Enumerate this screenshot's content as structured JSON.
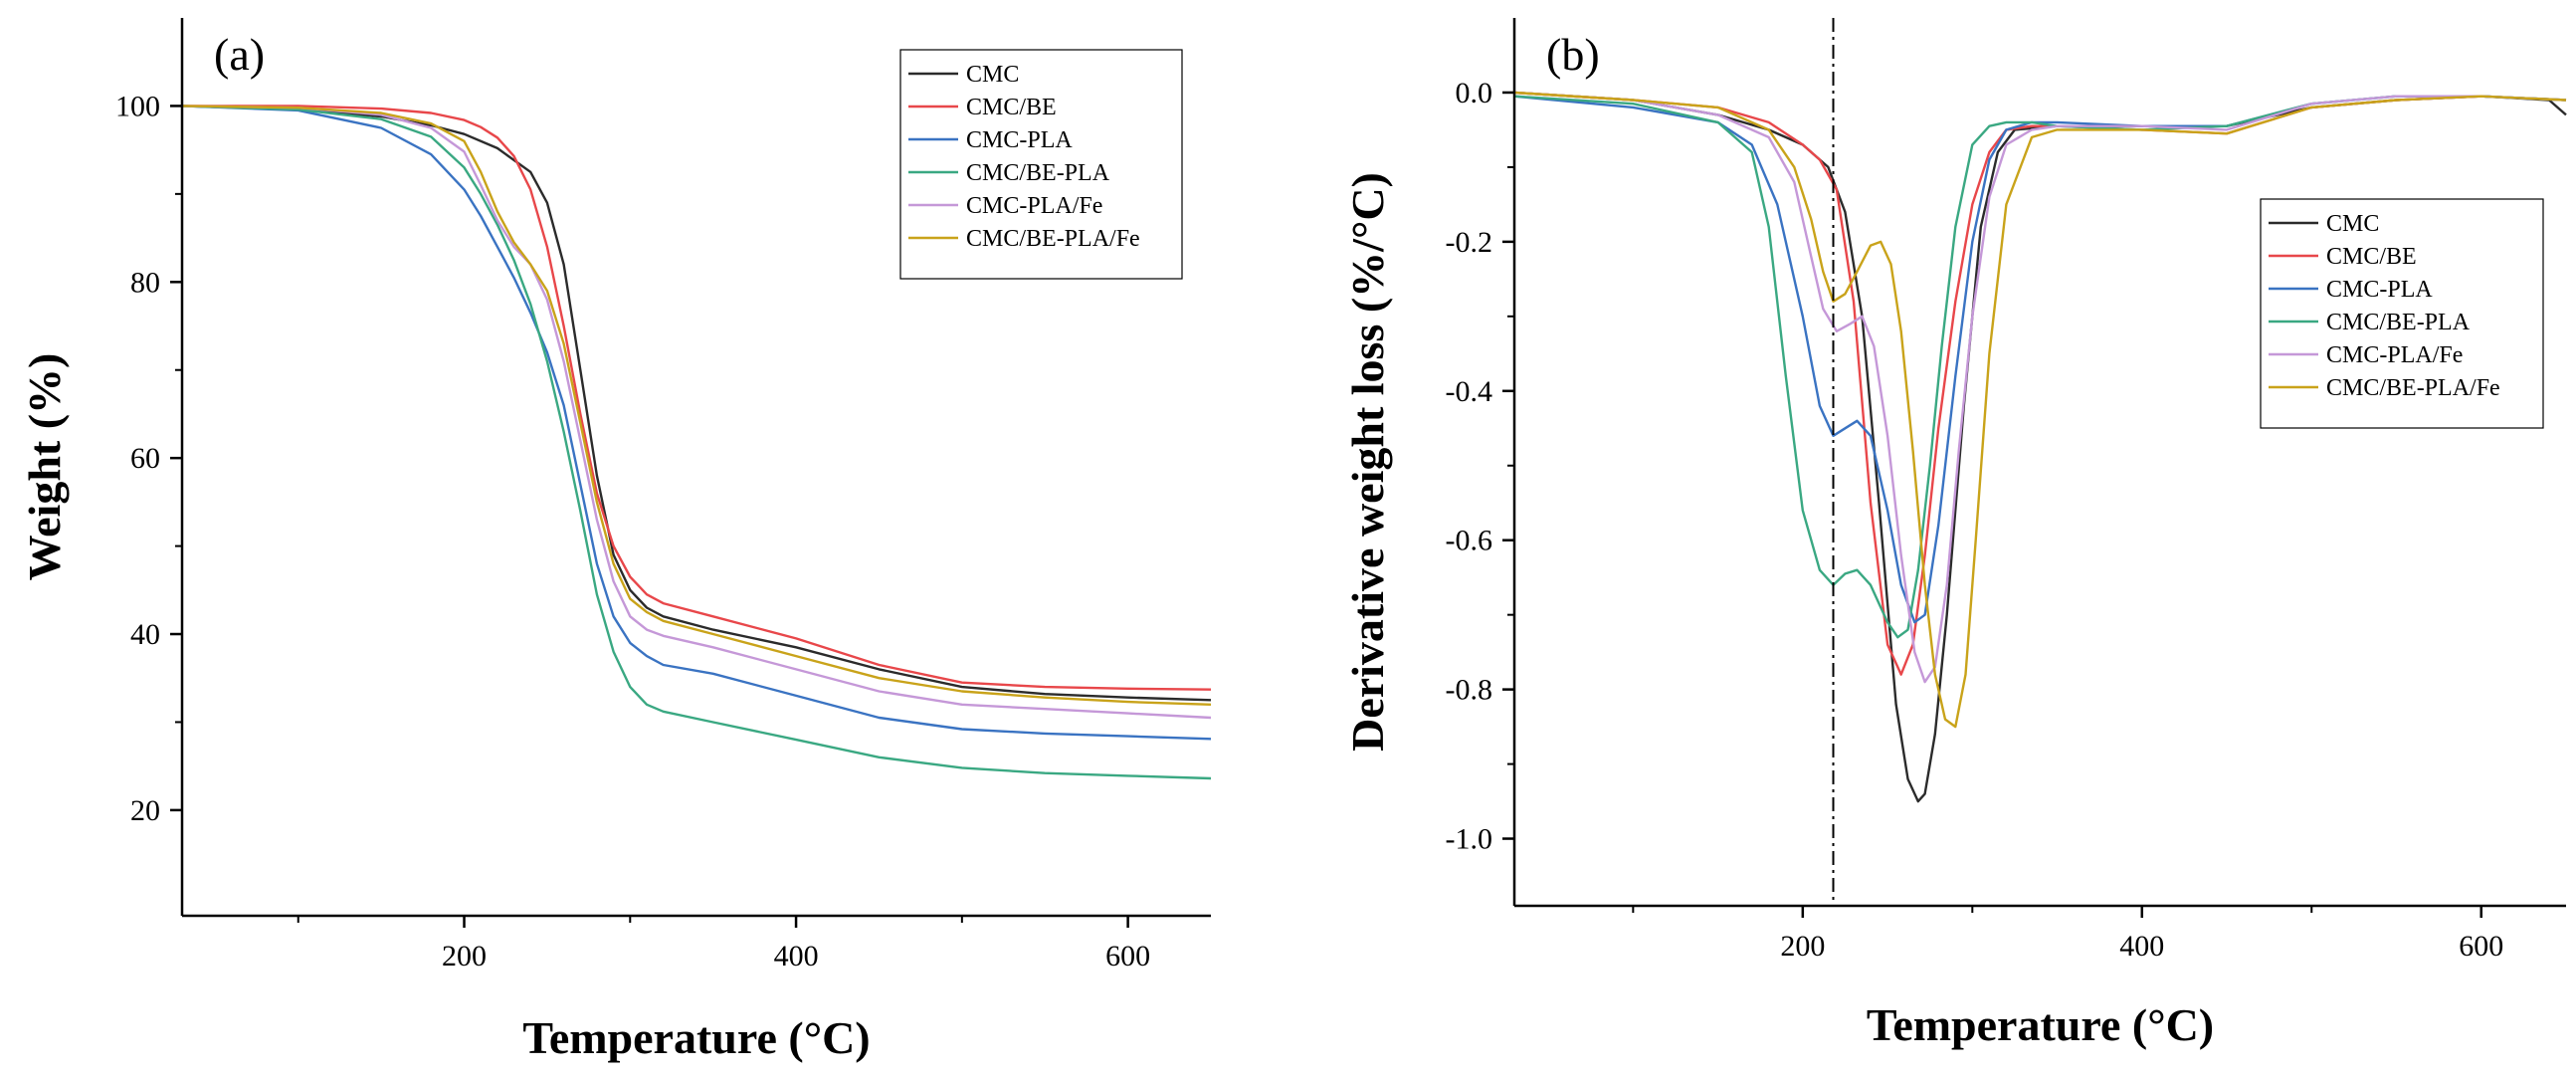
{
  "chart_data": [
    {
      "type": "line",
      "panel_label": "(a)",
      "xlabel": "Temperature (°C)",
      "ylabel": "Weight (%)",
      "xlim": [
        30,
        650
      ],
      "ylim": [
        8,
        110
      ],
      "x_ticks": [
        200,
        400,
        600
      ],
      "x_minor_ticks": [
        100,
        300,
        500
      ],
      "y_ticks": [
        20,
        40,
        60,
        80,
        100
      ],
      "grid": false,
      "legend_position": "top-right",
      "series": [
        {
          "name": "CMC",
          "color": "#2b2b2b",
          "x": [
            30,
            100,
            150,
            180,
            200,
            220,
            240,
            250,
            260,
            270,
            280,
            290,
            300,
            310,
            320,
            350,
            400,
            450,
            500,
            550,
            600,
            650
          ],
          "y": [
            100,
            99.6,
            98.8,
            97.8,
            96.8,
            95.2,
            92.5,
            89,
            82,
            70,
            58,
            49,
            45,
            43,
            42,
            40.5,
            38.5,
            36,
            34,
            33.2,
            32.8,
            32.5
          ]
        },
        {
          "name": "CMC/BE",
          "color": "#e8474a",
          "x": [
            30,
            100,
            150,
            180,
            200,
            210,
            220,
            230,
            240,
            250,
            260,
            270,
            280,
            290,
            300,
            310,
            320,
            350,
            400,
            450,
            500,
            550,
            600,
            650
          ],
          "y": [
            100,
            100,
            99.7,
            99.2,
            98.4,
            97.6,
            96.4,
            94.3,
            90.5,
            84,
            75,
            65,
            56,
            50,
            46.5,
            44.5,
            43.5,
            42,
            39.5,
            36.5,
            34.5,
            34,
            33.8,
            33.7
          ]
        },
        {
          "name": "CMC-PLA",
          "color": "#3a73c2",
          "x": [
            30,
            100,
            150,
            180,
            200,
            210,
            220,
            230,
            240,
            250,
            260,
            270,
            280,
            290,
            300,
            310,
            320,
            350,
            400,
            450,
            500,
            550,
            600,
            650
          ],
          "y": [
            100,
            99.5,
            97.5,
            94.5,
            90.5,
            87.5,
            84,
            80.5,
            76.5,
            72,
            66,
            57,
            48,
            42,
            39,
            37.5,
            36.5,
            35.5,
            33,
            30.5,
            29.2,
            28.7,
            28.4,
            28.1
          ]
        },
        {
          "name": "CMC/BE-PLA",
          "color": "#3aa882",
          "x": [
            30,
            100,
            150,
            180,
            200,
            210,
            220,
            230,
            240,
            250,
            260,
            270,
            280,
            290,
            300,
            310,
            320,
            350,
            400,
            450,
            500,
            550,
            600,
            650
          ],
          "y": [
            100,
            99.6,
            98.5,
            96.5,
            93,
            90,
            86.5,
            82.5,
            77.5,
            71,
            63,
            54,
            44.5,
            38,
            34,
            32,
            31.2,
            30,
            28,
            26,
            24.8,
            24.2,
            23.9,
            23.6
          ]
        },
        {
          "name": "CMC-PLA/Fe",
          "color": "#c598d8",
          "x": [
            30,
            100,
            150,
            180,
            200,
            210,
            220,
            230,
            240,
            250,
            260,
            270,
            280,
            290,
            300,
            310,
            320,
            350,
            400,
            450,
            500,
            550,
            600,
            650
          ],
          "y": [
            100,
            99.8,
            99,
            97.5,
            94.8,
            91,
            87,
            84,
            82,
            78,
            71,
            62,
            53,
            46,
            42,
            40.5,
            39.8,
            38.5,
            36,
            33.5,
            32,
            31.5,
            31,
            30.5
          ]
        },
        {
          "name": "CMC/BE-PLA/Fe",
          "color": "#c9a31a",
          "x": [
            30,
            100,
            150,
            180,
            200,
            210,
            220,
            230,
            240,
            250,
            260,
            270,
            280,
            290,
            300,
            310,
            320,
            350,
            400,
            450,
            500,
            550,
            600,
            650
          ],
          "y": [
            100,
            99.8,
            99.2,
            98,
            96,
            92.5,
            88,
            84.5,
            82,
            79,
            73,
            64,
            55,
            48,
            44,
            42.5,
            41.5,
            40,
            37.5,
            35,
            33.5,
            32.8,
            32.3,
            32
          ]
        }
      ]
    },
    {
      "type": "line",
      "panel_label": "(b)",
      "xlabel": "Temperature (°C)",
      "ylabel": "Derivative weight loss (%/°C)",
      "xlim": [
        30,
        650
      ],
      "ylim": [
        -1.09,
        0.1
      ],
      "x_ticks": [
        200,
        400,
        600
      ],
      "x_minor_ticks": [
        100,
        300,
        500
      ],
      "y_ticks": [
        0.0,
        -0.2,
        -0.4,
        -0.6,
        -0.8,
        -1.0
      ],
      "y_tick_labels": [
        "0.0",
        "-0.2",
        "-0.4",
        "-0.6",
        "-0.8",
        "-1.0"
      ],
      "grid": false,
      "reference_line_x": 218,
      "legend_position": "right",
      "series": [
        {
          "name": "CMC",
          "color": "#2b2b2b",
          "x": [
            30,
            100,
            150,
            180,
            200,
            215,
            225,
            235,
            245,
            255,
            262,
            268,
            272,
            278,
            285,
            295,
            305,
            315,
            325,
            350,
            400,
            450,
            500,
            550,
            600,
            640,
            650
          ],
          "y": [
            0.0,
            -0.01,
            -0.03,
            -0.05,
            -0.07,
            -0.1,
            -0.16,
            -0.3,
            -0.55,
            -0.82,
            -0.92,
            -0.95,
            -0.94,
            -0.86,
            -0.7,
            -0.42,
            -0.18,
            -0.08,
            -0.05,
            -0.045,
            -0.045,
            -0.045,
            -0.02,
            -0.01,
            -0.005,
            -0.01,
            -0.03
          ]
        },
        {
          "name": "CMC/BE",
          "color": "#e8474a",
          "x": [
            30,
            100,
            150,
            180,
            200,
            210,
            220,
            230,
            240,
            250,
            258,
            265,
            272,
            280,
            290,
            300,
            310,
            320,
            335,
            350,
            400,
            450,
            500,
            550,
            600,
            650
          ],
          "y": [
            0.0,
            -0.01,
            -0.02,
            -0.04,
            -0.07,
            -0.09,
            -0.13,
            -0.28,
            -0.55,
            -0.74,
            -0.78,
            -0.74,
            -0.62,
            -0.45,
            -0.28,
            -0.15,
            -0.08,
            -0.05,
            -0.045,
            -0.045,
            -0.05,
            -0.055,
            -0.02,
            -0.01,
            -0.005,
            -0.01
          ]
        },
        {
          "name": "CMC-PLA",
          "color": "#3a73c2",
          "x": [
            30,
            100,
            150,
            170,
            185,
            200,
            210,
            218,
            225,
            232,
            240,
            250,
            258,
            266,
            272,
            280,
            290,
            300,
            310,
            320,
            335,
            350,
            400,
            450,
            500,
            550,
            600,
            650
          ],
          "y": [
            -0.005,
            -0.02,
            -0.04,
            -0.07,
            -0.15,
            -0.3,
            -0.42,
            -0.46,
            -0.45,
            -0.44,
            -0.46,
            -0.56,
            -0.66,
            -0.71,
            -0.7,
            -0.58,
            -0.38,
            -0.2,
            -0.09,
            -0.05,
            -0.04,
            -0.04,
            -0.045,
            -0.045,
            -0.015,
            -0.005,
            -0.005,
            -0.01
          ]
        },
        {
          "name": "CMC/BE-PLA",
          "color": "#3aa882",
          "x": [
            30,
            100,
            150,
            170,
            180,
            190,
            200,
            210,
            218,
            225,
            232,
            240,
            250,
            256,
            262,
            268,
            275,
            282,
            290,
            300,
            310,
            320,
            335,
            350,
            400,
            450,
            500,
            550,
            600,
            650
          ],
          "y": [
            -0.005,
            -0.015,
            -0.04,
            -0.08,
            -0.18,
            -0.38,
            -0.56,
            -0.64,
            -0.66,
            -0.645,
            -0.64,
            -0.66,
            -0.71,
            -0.73,
            -0.72,
            -0.64,
            -0.5,
            -0.34,
            -0.18,
            -0.07,
            -0.045,
            -0.04,
            -0.04,
            -0.045,
            -0.05,
            -0.045,
            -0.015,
            -0.005,
            -0.005,
            -0.01
          ]
        },
        {
          "name": "CMC-PLA/Fe",
          "color": "#c598d8",
          "x": [
            30,
            100,
            150,
            180,
            195,
            205,
            212,
            220,
            228,
            235,
            242,
            250,
            258,
            266,
            272,
            278,
            285,
            292,
            300,
            310,
            320,
            335,
            350,
            400,
            450,
            500,
            550,
            600,
            650
          ],
          "y": [
            0.0,
            -0.01,
            -0.03,
            -0.06,
            -0.12,
            -0.22,
            -0.29,
            -0.32,
            -0.31,
            -0.3,
            -0.34,
            -0.46,
            -0.62,
            -0.75,
            -0.79,
            -0.77,
            -0.66,
            -0.48,
            -0.3,
            -0.14,
            -0.07,
            -0.05,
            -0.045,
            -0.045,
            -0.05,
            -0.015,
            -0.005,
            -0.005,
            -0.01
          ]
        },
        {
          "name": "CMC/BE-PLA/Fe",
          "color": "#c9a31a",
          "x": [
            30,
            100,
            150,
            180,
            195,
            205,
            212,
            218,
            225,
            232,
            240,
            246,
            252,
            258,
            265,
            272,
            278,
            284,
            290,
            296,
            302,
            310,
            320,
            335,
            350,
            400,
            450,
            500,
            550,
            600,
            650
          ],
          "y": [
            0.0,
            -0.01,
            -0.02,
            -0.05,
            -0.1,
            -0.17,
            -0.24,
            -0.28,
            -0.27,
            -0.24,
            -0.205,
            -0.2,
            -0.23,
            -0.32,
            -0.48,
            -0.66,
            -0.78,
            -0.84,
            -0.85,
            -0.78,
            -0.6,
            -0.35,
            -0.15,
            -0.06,
            -0.05,
            -0.05,
            -0.055,
            -0.02,
            -0.01,
            -0.005,
            -0.01
          ]
        }
      ]
    }
  ]
}
